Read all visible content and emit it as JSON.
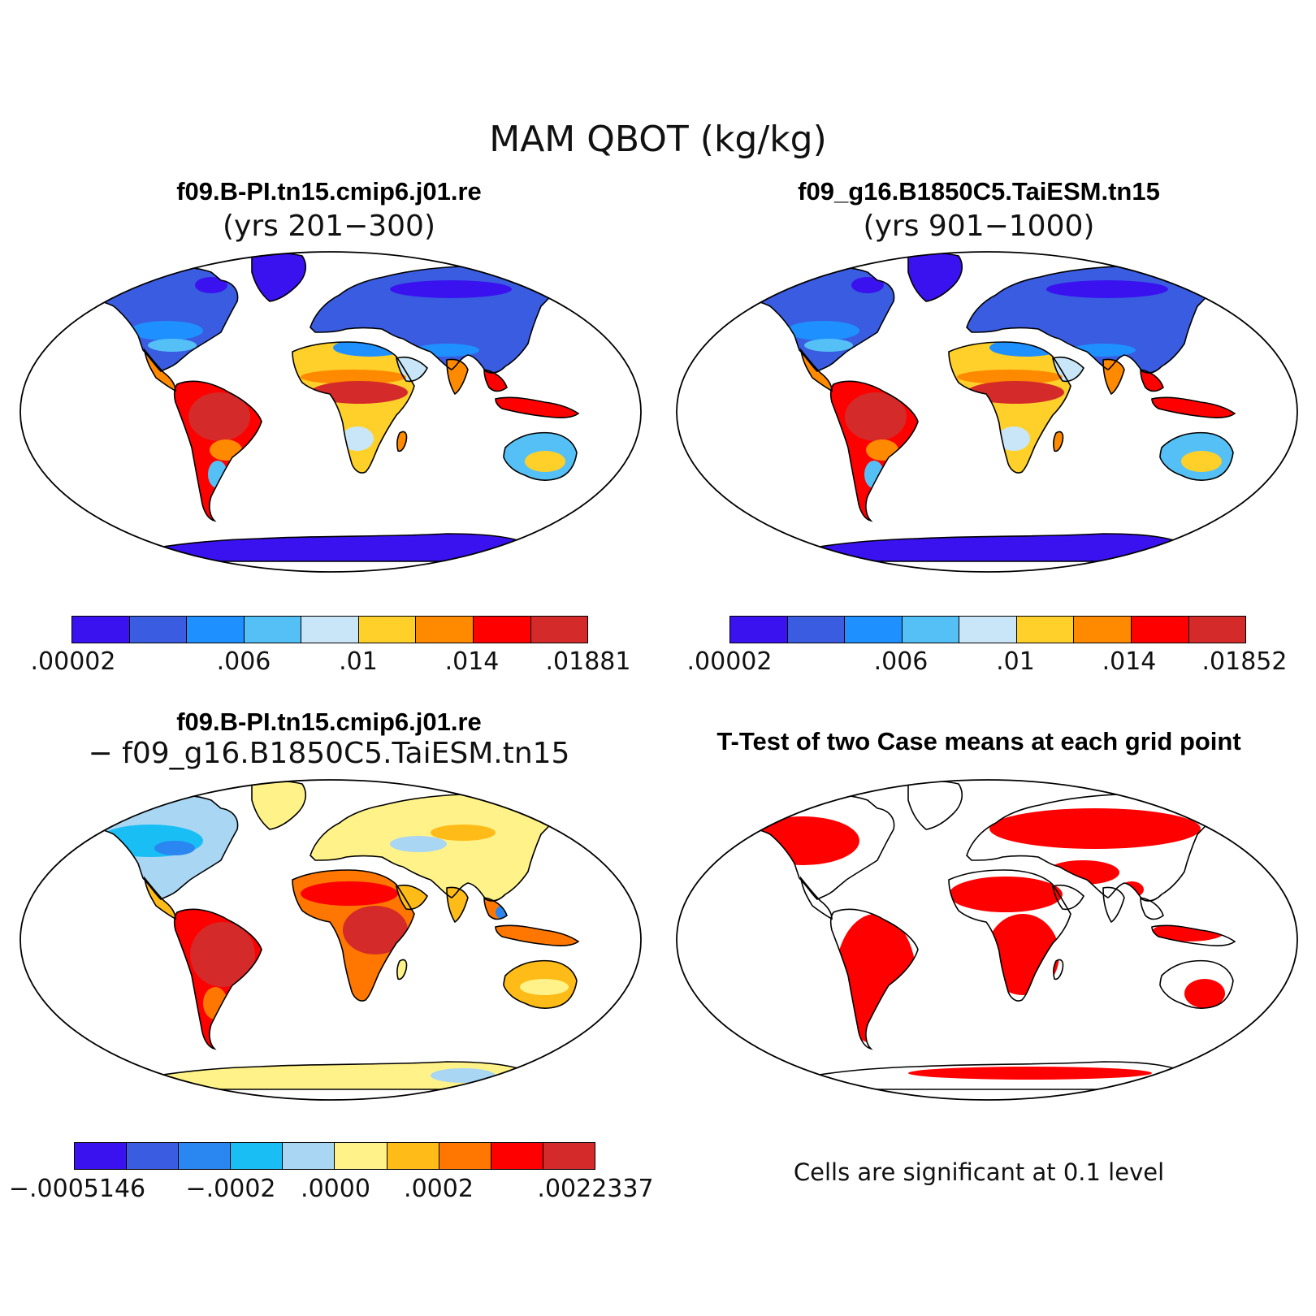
{
  "title": "MAM QBOT (kg/kg)",
  "panels": {
    "case1": {
      "name": "f09.B-PI.tn15.cmip6.j01.re",
      "years": "(yrs 201−300)"
    },
    "case2": {
      "name": "f09_g16.B1850C5.TaiESM.tn15",
      "years": "(yrs 901−1000)"
    },
    "diff": {
      "name": "f09.B-PI.tn15.cmip6.j01.re",
      "minus": "−  f09_g16.B1850C5.TaiESM.tn15"
    },
    "ttest": {
      "name": "T-Test of two Case means at each grid point",
      "note": "Cells are significant at 0.1 level"
    }
  },
  "colorbars": {
    "case1": {
      "colors": [
        "#3a12f0",
        "#3a5ce0",
        "#1e90ff",
        "#55c0f5",
        "#c8e6f7",
        "#ffd02a",
        "#ff8a00",
        "#ff0000",
        "#d42a2a"
      ],
      "labels": [
        ".00002",
        ".006",
        ".01",
        ".014",
        ".01881"
      ]
    },
    "case2": {
      "colors": [
        "#3a12f0",
        "#3a5ce0",
        "#1e90ff",
        "#55c0f5",
        "#c8e6f7",
        "#ffd02a",
        "#ff8a00",
        "#ff0000",
        "#d42a2a"
      ],
      "labels": [
        ".00002",
        ".006",
        ".01",
        ".014",
        ".01852"
      ]
    },
    "diff": {
      "colors": [
        "#3a12f0",
        "#3a5ce0",
        "#2a86f0",
        "#19bef5",
        "#a9d6f2",
        "#fff288",
        "#ffbb18",
        "#ff7700",
        "#ff0000",
        "#d42a2a"
      ],
      "labels": [
        "−.0005146",
        "−.0002",
        ".0000",
        ".0002",
        ".0022337"
      ]
    }
  },
  "significance_color": "#ff0000"
}
